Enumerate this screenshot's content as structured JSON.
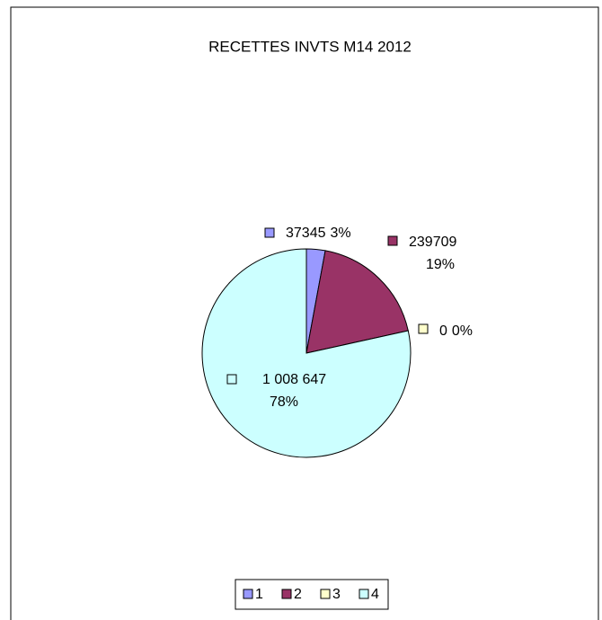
{
  "chart_data": {
    "type": "pie",
    "title": "RECETTES INVTS M14 2012",
    "categories": [
      "1",
      "2",
      "3",
      "4"
    ],
    "values": [
      37345,
      239709,
      0,
      1008647
    ],
    "value_labels": [
      "37345",
      "239709",
      "0",
      "1 008 647"
    ],
    "percents": [
      3,
      19,
      0,
      78
    ],
    "percent_labels": [
      "3%",
      "19%",
      "0%",
      "78%"
    ],
    "colors": [
      "#9999ff",
      "#993366",
      "#ffffcc",
      "#ccffff"
    ],
    "legend": "bottom"
  }
}
